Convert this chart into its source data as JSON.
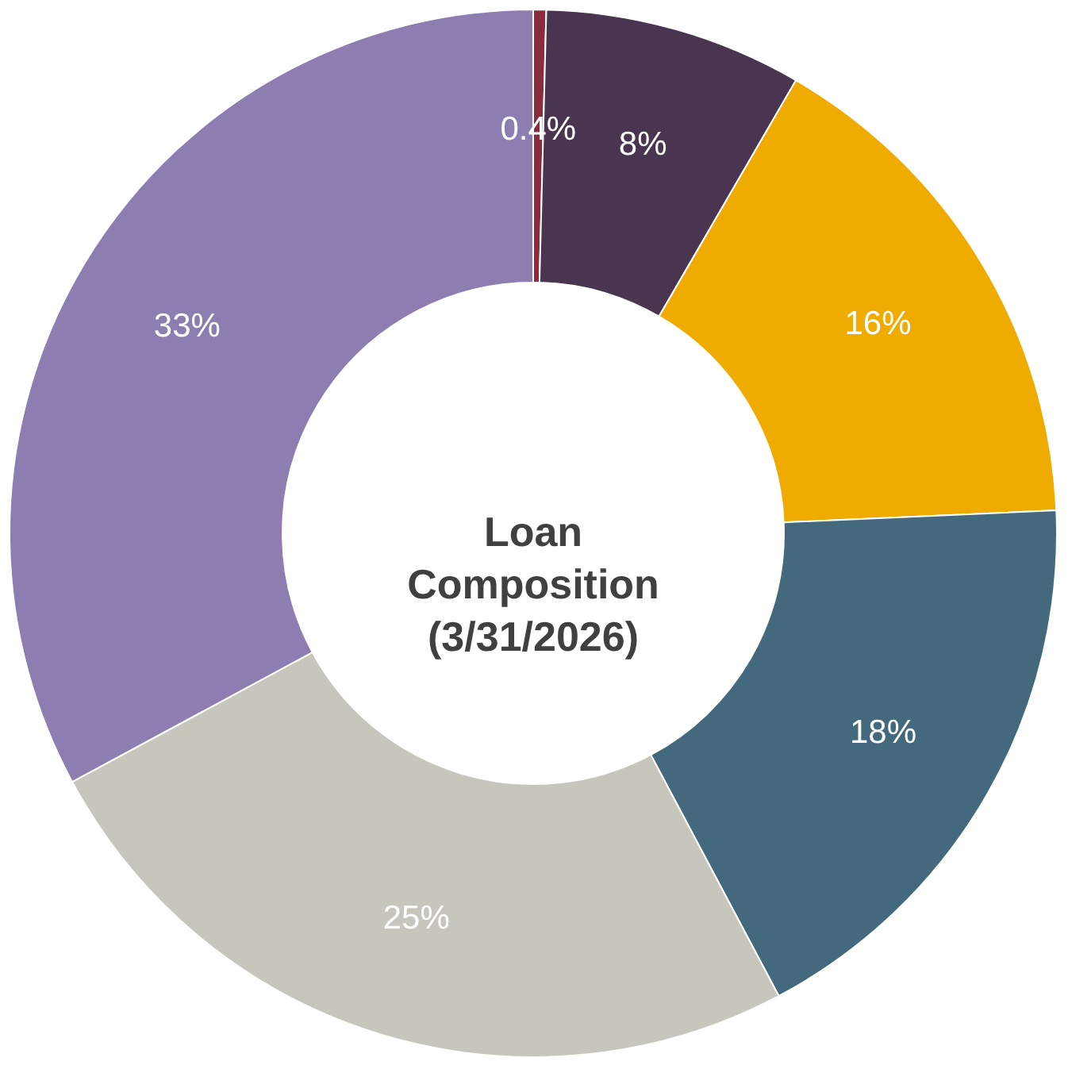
{
  "chart_data": {
    "type": "donut",
    "title": "Loan Composition (3/31/2026)",
    "categories": [
      null,
      null,
      null,
      null,
      null,
      null
    ],
    "values": [
      0.4,
      8,
      16,
      18,
      25,
      33
    ],
    "value_labels": [
      "0.4%",
      "8%",
      "16%",
      "18%",
      "25%",
      "33%"
    ],
    "colors": [
      "#8b2c3c",
      "#4a3550",
      "#f0ab00",
      "#44697d",
      "#c6c6bd",
      "#8d7db0"
    ]
  }
}
